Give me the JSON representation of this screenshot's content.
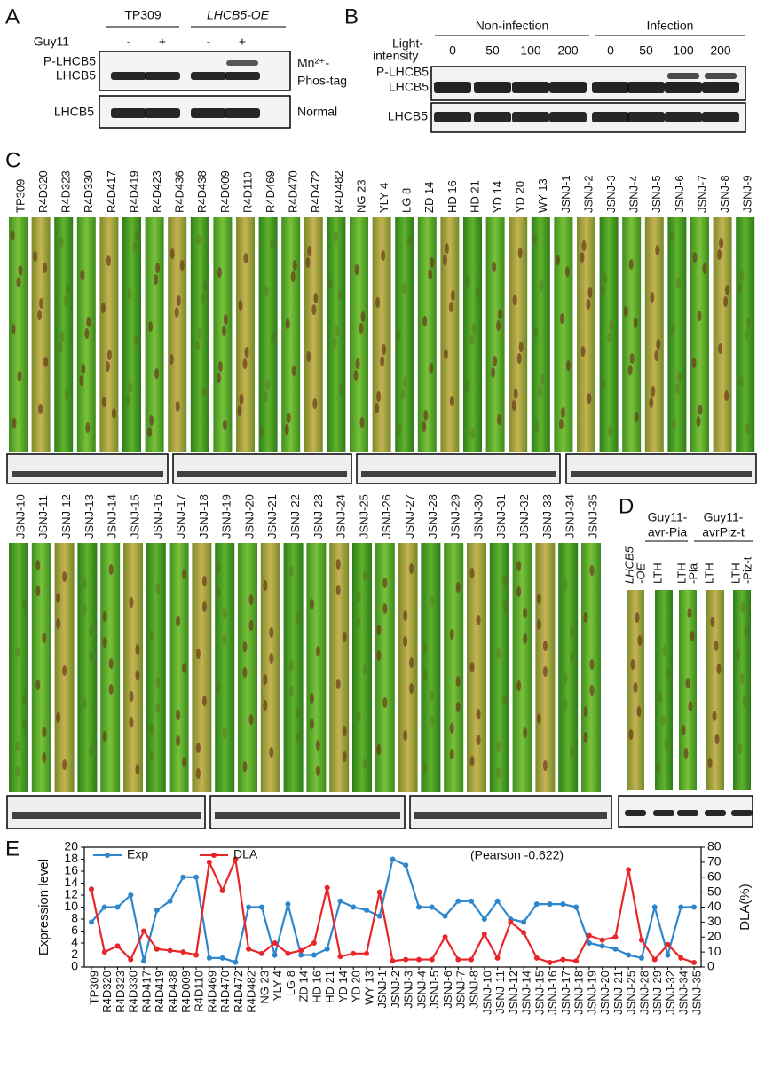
{
  "panel_a": {
    "letter": "A",
    "groups": [
      "TP309",
      "LHCB5-OE"
    ],
    "treatment": "Guy11",
    "signs": [
      "-",
      "+",
      "-",
      "+"
    ],
    "bands": [
      "P-LHCB5",
      "LHCB5"
    ],
    "phos_tag": [
      "Mn²⁺-",
      "Phos-tag"
    ],
    "lower_band": "LHCB5",
    "lower_label": "Normal"
  },
  "panel_b": {
    "letter": "B",
    "groups": [
      "Non-infection",
      "Infection"
    ],
    "intensity_label": [
      "Light-",
      "intensity"
    ],
    "intensities": [
      "0",
      "50",
      "100",
      "200",
      "0",
      "50",
      "100",
      "200"
    ],
    "bands": [
      "P-LHCB5",
      "LHCB5"
    ],
    "lower_band": "LHCB5"
  },
  "panel_c": {
    "letter": "C",
    "top_row": [
      "TP309",
      "R4D320",
      "R4D323",
      "R4D330",
      "R4D417",
      "R4D419",
      "R4D423",
      "R4D436",
      "R4D438",
      "R4D009",
      "R4D110",
      "R4D469",
      "R4D470",
      "R4D472",
      "R4D482",
      "NG 23",
      "YLY 4",
      "LG 8",
      "ZD 14",
      "HD 16",
      "HD 21",
      "YD 14",
      "YD 20",
      "WY 13",
      "JSNJ-1",
      "JSNJ-2",
      "JSNJ-3",
      "JSNJ-4",
      "JSNJ-5",
      "JSNJ-6",
      "JSNJ-7",
      "JSNJ-8",
      "JSNJ-9"
    ],
    "bottom_row": [
      "JSNJ-10",
      "JSNJ-11",
      "JSNJ-12",
      "JSNJ-13",
      "JSNJ-14",
      "JSNJ-15",
      "JSNJ-16",
      "JSNJ-17",
      "JSNJ-18",
      "JSNJ-19",
      "JSNJ-20",
      "JSNJ-21",
      "JSNJ-22",
      "JSNJ-23",
      "JSNJ-24",
      "JSNJ-25",
      "JSNJ-26",
      "JSNJ-27",
      "JSNJ-28",
      "JSNJ-29",
      "JSNJ-30",
      "JSNJ-31",
      "JSNJ-32",
      "JSNJ-33",
      "JSNJ-34",
      "JSNJ-35"
    ]
  },
  "panel_d": {
    "letter": "D",
    "groups": [
      [
        "Guy11-",
        "avr-Pia"
      ],
      [
        "Guy11-",
        "avrPiz-t"
      ]
    ],
    "leaves": [
      [
        "LHCB5",
        "-OE"
      ],
      [
        "LTH"
      ],
      [
        "LTH",
        "-Pia"
      ],
      [
        "LTH"
      ],
      [
        "LTH",
        "-Piz-t"
      ]
    ]
  },
  "chart_data": {
    "type": "line",
    "panel_label": "E",
    "annotation": "(Pearson -0.622)",
    "y_label": "Expression level",
    "y2_label": "DLA(%)",
    "categories": [
      "TP309",
      "R4D320",
      "R4D323",
      "R4D330",
      "R4D417",
      "R4D419",
      "R4D438",
      "R4D009",
      "R4D110",
      "R4D469",
      "R4D470",
      "R4D472",
      "R4D482",
      "NG 23",
      "YLY 4",
      "LG 8",
      "ZD 14",
      "HD 16",
      "HD 21",
      "YD 14",
      "YD 20",
      "WY 13",
      "JSNJ-1",
      "JSNJ-2",
      "JSNJ-3",
      "JSNJ-4",
      "JSNJ-5",
      "JSNJ-6",
      "JSNJ-7",
      "JSNJ-8",
      "JSNJ-10",
      "JSNJ-11",
      "JSNJ-12",
      "JSNJ-14",
      "JSNJ-15",
      "JSNJ-16",
      "JSNJ-17",
      "JSNJ-18",
      "JSNJ-19",
      "JSNJ-20",
      "JSNJ-21",
      "JSNJ-25",
      "JSNJ-28",
      "JSNJ-29",
      "JSNJ-32",
      "JSNJ-34",
      "JSNJ-35"
    ],
    "series": [
      {
        "name": "Exp",
        "color": "#2e87cc",
        "axis": "y",
        "values": [
          7.5,
          10,
          10,
          12,
          1,
          9.5,
          11,
          15,
          15,
          1.5,
          1.5,
          0.8,
          10,
          10,
          2,
          10.5,
          2,
          2,
          3,
          11,
          10,
          9.5,
          8.5,
          18,
          17,
          10,
          10,
          8.5,
          11,
          11,
          8,
          11,
          8,
          7.5,
          10.5,
          10.5,
          10.5,
          10,
          4,
          3.5,
          3,
          2,
          1.5,
          10,
          2,
          10,
          10
        ]
      },
      {
        "name": "DLA",
        "color": "#e8262a",
        "axis": "y2",
        "values": [
          52,
          10,
          14,
          5,
          24,
          12,
          11,
          10,
          8,
          70,
          51,
          72,
          12,
          9,
          16,
          9,
          11,
          16,
          53,
          7,
          9,
          9,
          50,
          4,
          5,
          5,
          5,
          20,
          5,
          5,
          22,
          6,
          30,
          23,
          6,
          3,
          5,
          4,
          21,
          18,
          20,
          65,
          18,
          5,
          15,
          6,
          3
        ]
      }
    ],
    "ylim": [
      0,
      20
    ],
    "yticks": [
      0,
      2,
      4,
      6,
      8,
      10,
      12,
      14,
      16,
      18,
      20
    ],
    "y2lim": [
      0,
      80
    ],
    "y2ticks": [
      0,
      10,
      20,
      30,
      40,
      50,
      60,
      70,
      80
    ],
    "legend": "top-left",
    "grid": false
  }
}
